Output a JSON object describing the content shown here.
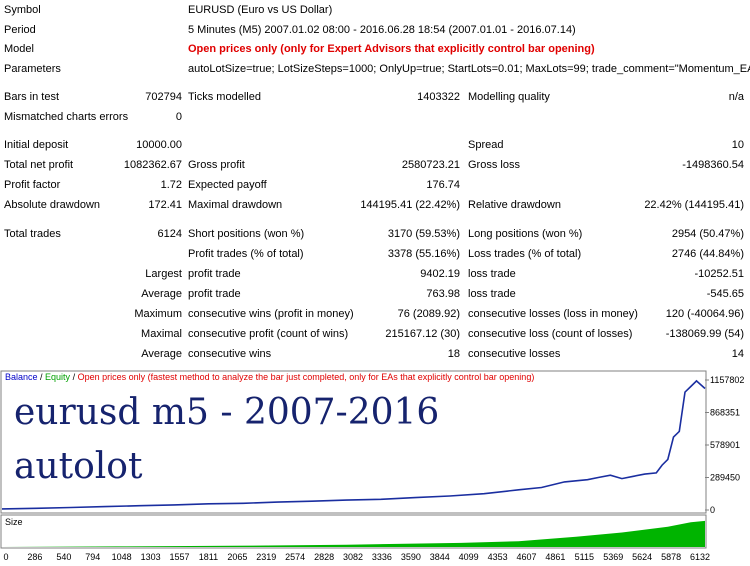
{
  "header": {
    "symbol_label": "Symbol",
    "symbol_value": "EURUSD (Euro vs US Dollar)",
    "period_label": "Period",
    "period_value": "5 Minutes (M5) 2007.01.02 08:00 - 2016.06.28 18:54 (2007.01.01 - 2016.07.14)",
    "model_label": "Model",
    "model_value": "Open prices only (only for Expert Advisors that explicitly control bar opening)",
    "params_label": "Parameters",
    "params_value": "autoLotSize=true; LotSizeSteps=1000; OnlyUp=true; StartLots=0.01; MaxLots=99; trade_comment=\"Momentum_EA\";"
  },
  "test": {
    "bars_label": "Bars in test",
    "bars_value": "702794",
    "ticks_label": "Ticks modelled",
    "ticks_value": "1403322",
    "quality_label": "Modelling quality",
    "quality_value": "n/a",
    "mismatch_label": "Mismatched charts errors",
    "mismatch_value": "0"
  },
  "results": {
    "deposit_label": "Initial deposit",
    "deposit_value": "10000.00",
    "spread_label": "Spread",
    "spread_value": "10",
    "net_label": "Total net profit",
    "net_value": "1082362.67",
    "gross_profit_label": "Gross profit",
    "gross_profit_value": "2580723.21",
    "gross_loss_label": "Gross loss",
    "gross_loss_value": "-1498360.54",
    "pf_label": "Profit factor",
    "pf_value": "1.72",
    "payoff_label": "Expected payoff",
    "payoff_value": "176.74",
    "abs_dd_label": "Absolute drawdown",
    "abs_dd_value": "172.41",
    "max_dd_label": "Maximal drawdown",
    "max_dd_value": "144195.41 (22.42%)",
    "rel_dd_label": "Relative drawdown",
    "rel_dd_value": "22.42% (144195.41)"
  },
  "trades": {
    "total_label": "Total trades",
    "total_value": "6124",
    "short_label": "Short positions (won %)",
    "short_value": "3170 (59.53%)",
    "long_label": "Long positions (won %)",
    "long_value": "2954 (50.47%)",
    "ptrades_label": "Profit trades (% of total)",
    "ptrades_value": "3378 (55.16%)",
    "ltrades_label": "Loss trades (% of total)",
    "ltrades_value": "2746 (44.84%)",
    "largest_label": "Largest",
    "largest_p_label": "profit trade",
    "largest_p_value": "9402.19",
    "largest_l_label": "loss trade",
    "largest_l_value": "-10252.51",
    "average_label": "Average",
    "average_p_label": "profit trade",
    "average_p_value": "763.98",
    "average_l_label": "loss trade",
    "average_l_value": "-545.65",
    "maximum_label": "Maximum",
    "max_w_label": "consecutive wins (profit in money)",
    "max_w_value": "76 (2089.92)",
    "max_l_label": "consecutive losses (loss in money)",
    "max_l_value": "120 (-40064.96)",
    "maximal_label": "Maximal",
    "mp_label": "consecutive profit (count of wins)",
    "mp_value": "215167.12 (30)",
    "ml_label": "consecutive loss (count of losses)",
    "ml_value": "-138069.99 (54)",
    "average2_label": "Average",
    "aw_label": "consecutive wins",
    "aw_value": "18",
    "al_label": "consecutive losses",
    "al_value": "14"
  },
  "graph": {
    "legend_balance": "Balance",
    "legend_sep1": " / ",
    "legend_equity": "Equity",
    "legend_sep2": " / ",
    "legend_note": "Open prices only (fastest method to analyze the bar just completed, only for EAs that explicitly control bar opening)",
    "overlay_line1": "eurusd m5 - 2007-2016",
    "overlay_line2": "autolot",
    "size_label": "Size",
    "colors": {
      "balance": "#1a2ea0",
      "size": "#00b400",
      "legend_balance": "#0000c8",
      "legend_equity": "#00a000",
      "legend_note": "#e00000"
    }
  },
  "chart_data": {
    "type": "line",
    "x_ticks": [
      "0",
      "286",
      "540",
      "794",
      "1048",
      "1303",
      "1557",
      "1811",
      "2065",
      "2319",
      "2574",
      "2828",
      "3082",
      "3336",
      "3590",
      "3844",
      "4099",
      "4353",
      "4607",
      "4861",
      "5115",
      "5369",
      "5624",
      "5878",
      "6132"
    ],
    "y_ticks": [
      "1157802",
      "868351",
      "578901",
      "289450",
      "0"
    ],
    "ylim": [
      0,
      1157802
    ],
    "xlim": [
      0,
      6124
    ],
    "series": [
      {
        "name": "Balance",
        "x": [
          0,
          300,
          600,
          900,
          1200,
          1500,
          1800,
          2100,
          2400,
          2700,
          3000,
          3300,
          3600,
          3900,
          4200,
          4500,
          4700,
          4900,
          5100,
          5200,
          5300,
          5400,
          5500,
          5600,
          5700,
          5750,
          5800,
          5850,
          5900,
          5950,
          6000,
          6050,
          6124
        ],
        "values": [
          10000,
          15000,
          22000,
          30000,
          38000,
          45000,
          55000,
          60000,
          70000,
          78000,
          88000,
          95000,
          110000,
          125000,
          145000,
          180000,
          200000,
          250000,
          270000,
          290000,
          310000,
          280000,
          300000,
          320000,
          330000,
          400000,
          450000,
          650000,
          700000,
          1050000,
          1100000,
          1150000,
          1082362
        ]
      }
    ],
    "size_series": [
      {
        "name": "Size",
        "x": [
          0,
          1000,
          2000,
          3000,
          4000,
          4500,
          5000,
          5400,
          5800,
          6000,
          6124
        ],
        "values": [
          0,
          2,
          4,
          8,
          14,
          20,
          35,
          50,
          70,
          85,
          90
        ]
      }
    ]
  }
}
